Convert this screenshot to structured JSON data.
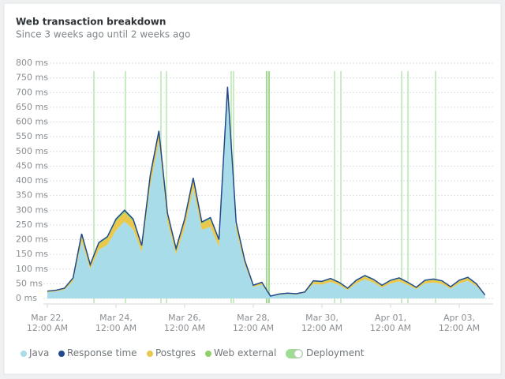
{
  "chart_data": {
    "type": "area",
    "stacked": true,
    "title": "Web transaction breakdown",
    "subtitle": "Since 3 weeks ago until 2 weeks ago",
    "categories": [
      "Mar 22, 12:00 AM",
      null,
      null,
      null,
      null,
      null,
      null,
      null,
      "Mar 24, 12:00 AM",
      null,
      null,
      null,
      null,
      null,
      null,
      null,
      "Mar 26, 12:00 AM",
      null,
      null,
      null,
      null,
      null,
      null,
      null,
      "Mar 28, 12:00 AM",
      null,
      null,
      null,
      null,
      null,
      null,
      null,
      "Mar 30, 12:00 AM",
      null,
      null,
      null,
      null,
      null,
      null,
      null,
      "Apr 01, 12:00 AM",
      null,
      null,
      null,
      null,
      null,
      null,
      null,
      "Apr 03, 12:00 AM",
      null,
      null,
      null
    ],
    "series": [
      {
        "name": "Java",
        "color": "#a9dce9",
        "values": [
          21,
          24,
          30,
          59,
          195,
          100,
          165,
          183,
          232,
          262,
          235,
          158,
          384,
          534,
          259,
          151,
          239,
          374,
          233,
          244,
          175,
          684,
          233,
          115,
          39,
          47,
          7,
          12,
          15,
          13,
          19,
          49,
          47,
          56,
          46,
          29,
          51,
          65,
          54,
          37,
          51,
          58,
          46,
          32,
          51,
          54,
          49,
          33,
          51,
          60,
          42,
          11
        ]
      },
      {
        "name": "Response time",
        "type": "line",
        "color": "#1f4b8e",
        "values": [
          25,
          28,
          35,
          70,
          220,
          115,
          190,
          210,
          270,
          300,
          270,
          180,
          420,
          570,
          290,
          170,
          270,
          410,
          260,
          275,
          200,
          720,
          260,
          130,
          45,
          55,
          8,
          15,
          18,
          16,
          22,
          60,
          58,
          68,
          55,
          35,
          62,
          78,
          65,
          45,
          62,
          70,
          55,
          38,
          62,
          66,
          60,
          40,
          62,
          72,
          50,
          12
        ]
      },
      {
        "name": "Postgres",
        "color": "#e9c84c",
        "values": [
          3,
          3,
          4,
          8,
          20,
          12,
          20,
          22,
          30,
          30,
          28,
          18,
          30,
          30,
          25,
          15,
          25,
          30,
          22,
          25,
          20,
          30,
          22,
          12,
          5,
          6,
          1,
          2,
          2,
          2,
          2,
          8,
          8,
          9,
          7,
          5,
          8,
          10,
          8,
          6,
          8,
          9,
          7,
          5,
          8,
          9,
          8,
          5,
          8,
          9,
          6,
          1
        ]
      },
      {
        "name": "Web external",
        "color": "#92cf6c",
        "values": [
          1,
          1,
          1,
          3,
          5,
          3,
          5,
          5,
          8,
          8,
          7,
          4,
          6,
          6,
          6,
          4,
          6,
          6,
          5,
          6,
          5,
          6,
          5,
          3,
          1,
          2,
          0,
          1,
          1,
          1,
          1,
          3,
          3,
          3,
          2,
          1,
          3,
          3,
          3,
          2,
          3,
          3,
          2,
          1,
          3,
          3,
          3,
          2,
          3,
          3,
          2,
          0
        ]
      }
    ],
    "deployment_label": "Deployment",
    "ylim": [
      0,
      800
    ],
    "yticks": [
      {
        "value": 0,
        "label": "0 ms"
      },
      {
        "value": 50,
        "label": "50 ms"
      },
      {
        "value": 100,
        "label": "100 ms"
      },
      {
        "value": 150,
        "label": "150 ms"
      },
      {
        "value": 200,
        "label": "200 ms"
      },
      {
        "value": 250,
        "label": "250 ms"
      },
      {
        "value": 300,
        "label": "300 ms"
      },
      {
        "value": 350,
        "label": "350 ms"
      },
      {
        "value": 400,
        "label": "400 ms"
      },
      {
        "value": 450,
        "label": "450 ms"
      },
      {
        "value": 500,
        "label": "500 ms"
      },
      {
        "value": 550,
        "label": "550 ms"
      },
      {
        "value": 600,
        "label": "600 ms"
      },
      {
        "value": 650,
        "label": "650 ms"
      },
      {
        "value": 700,
        "label": "700 ms"
      },
      {
        "value": 750,
        "label": "750 ms"
      },
      {
        "value": 800,
        "label": "800 ms"
      }
    ],
    "grid": true
  }
}
